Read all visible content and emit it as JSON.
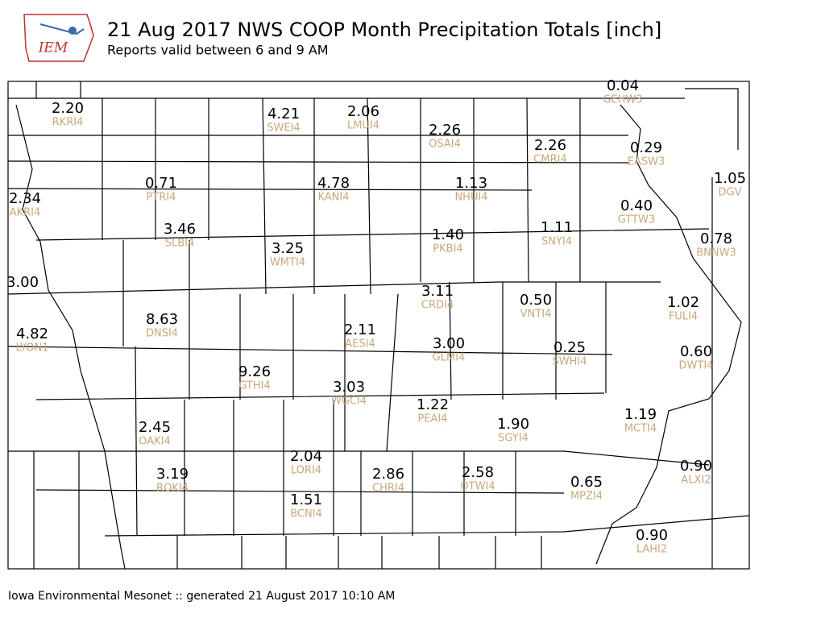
{
  "header": {
    "logo_text": "IEM",
    "title": "21 Aug 2017 NWS COOP Month Precipitation Totals [inch]",
    "subtitle": "Reports valid between 6 and 9 AM"
  },
  "stations": [
    {
      "value": "0.04",
      "id": "GEHW3"
    },
    {
      "value": "2.20",
      "id": "RKRI4"
    },
    {
      "value": "4.21",
      "id": "SWEI4"
    },
    {
      "value": "2.06",
      "id": "LMUI4"
    },
    {
      "value": "2.26",
      "id": "OSAI4"
    },
    {
      "value": "2.26",
      "id": "CMRI4"
    },
    {
      "value": "0.29",
      "id": "EASW3"
    },
    {
      "value": "1.05",
      "id": "DGV"
    },
    {
      "value": "0.71",
      "id": "PTRI4"
    },
    {
      "value": "4.78",
      "id": "KANI4"
    },
    {
      "value": "1.13",
      "id": "NHUI4"
    },
    {
      "value": "2.34",
      "id": "AKRI4"
    },
    {
      "value": "0.40",
      "id": "GTTW3"
    },
    {
      "value": "3.46",
      "id": "SLBI4"
    },
    {
      "value": "1.11",
      "id": "SNYI4"
    },
    {
      "value": "1.40",
      "id": "PKBI4"
    },
    {
      "value": "0.78",
      "id": "BNNW3"
    },
    {
      "value": "3.25",
      "id": "WMTI4"
    },
    {
      "value": "3.00"
    },
    {
      "value": "3.11",
      "id": "CRDI4"
    },
    {
      "value": "0.50",
      "id": "VNTI4"
    },
    {
      "value": "1.02",
      "id": "FULI4"
    },
    {
      "value": "8.63",
      "id": "DNSI4"
    },
    {
      "value": "2.11",
      "id": "AESI4"
    },
    {
      "value": "4.82",
      "id": "LYON1"
    },
    {
      "value": "3.00",
      "id": "GLMI4"
    },
    {
      "value": "0.25",
      "id": "SWHI4"
    },
    {
      "value": "0.60",
      "id": "DWTI4"
    },
    {
      "value": "9.26",
      "id": "GTHI4"
    },
    {
      "value": "3.03",
      "id": "WGCI4"
    },
    {
      "value": "1.22",
      "id": "PEAI4"
    },
    {
      "value": "1.19",
      "id": "MCTI4"
    },
    {
      "value": "1.90",
      "id": "SGYI4"
    },
    {
      "value": "2.45",
      "id": "OAKI4"
    },
    {
      "value": "2.04",
      "id": "LORI4"
    },
    {
      "value": "0.90",
      "id": "ALXI2"
    },
    {
      "value": "2.86",
      "id": "CHRI4"
    },
    {
      "value": "2.58",
      "id": "OTWI4"
    },
    {
      "value": "3.19",
      "id": "ROKI4"
    },
    {
      "value": "0.65",
      "id": "MPZI4"
    },
    {
      "value": "1.51",
      "id": "BCNI4"
    },
    {
      "value": "0.90",
      "id": "LAHI2"
    }
  ],
  "footer": "Iowa Environmental Mesonet :: generated 21 August 2017 10:10 AM"
}
